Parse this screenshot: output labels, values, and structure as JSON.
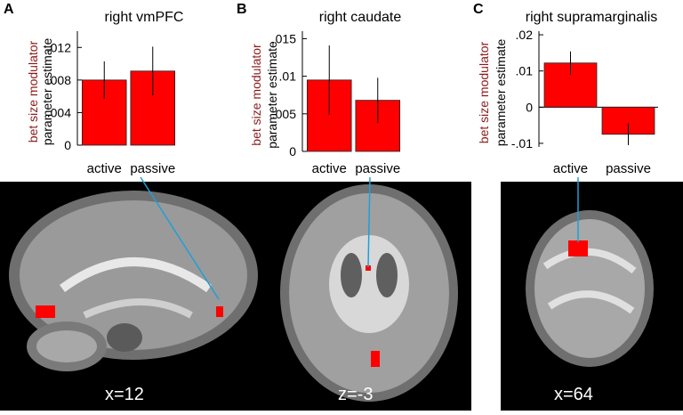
{
  "panels": [
    {
      "letter": "A",
      "coord_label": "x=12"
    },
    {
      "letter": "B",
      "coord_label": "z=-3"
    },
    {
      "letter": "C",
      "coord_label": "x=64"
    }
  ],
  "ylabel_line1": "bet size modulator",
  "ylabel_line2": "parameter estimate",
  "colors": {
    "bar": "#ff0000",
    "ylabel_accent": "#8b1a1a",
    "connector": "#1e9fd8",
    "brain_bg": "#000000"
  },
  "chart_data": [
    {
      "type": "bar",
      "title": "right vmPFC",
      "categories": [
        "active",
        "passive"
      ],
      "values": [
        0.008,
        0.0091
      ],
      "error": [
        0.0023,
        0.003
      ],
      "ylim": [
        0,
        0.014
      ],
      "yticks": [
        0,
        0.004,
        0.008,
        0.012
      ],
      "ytick_labels": [
        "0",
        ".004",
        ".008",
        ".012"
      ]
    },
    {
      "type": "bar",
      "title": "right caudate",
      "categories": [
        "active",
        "passive"
      ],
      "values": [
        0.0095,
        0.0068
      ],
      "error": [
        0.0046,
        0.003
      ],
      "ylim": [
        0,
        0.016
      ],
      "yticks": [
        0,
        0.005,
        0.01,
        0.015
      ],
      "ytick_labels": [
        "0",
        ".005",
        ".01",
        ".015"
      ]
    },
    {
      "type": "bar",
      "title": "right supramarginalis",
      "categories": [
        "active",
        "passive"
      ],
      "values": [
        0.0122,
        -0.0075
      ],
      "error": [
        0.0032,
        0.003
      ],
      "ylim": [
        -0.011,
        0.021
      ],
      "yticks": [
        -0.01,
        0,
        0.01,
        0.02
      ],
      "ytick_labels": [
        "-.01",
        "0",
        ".01",
        ".02"
      ]
    }
  ]
}
